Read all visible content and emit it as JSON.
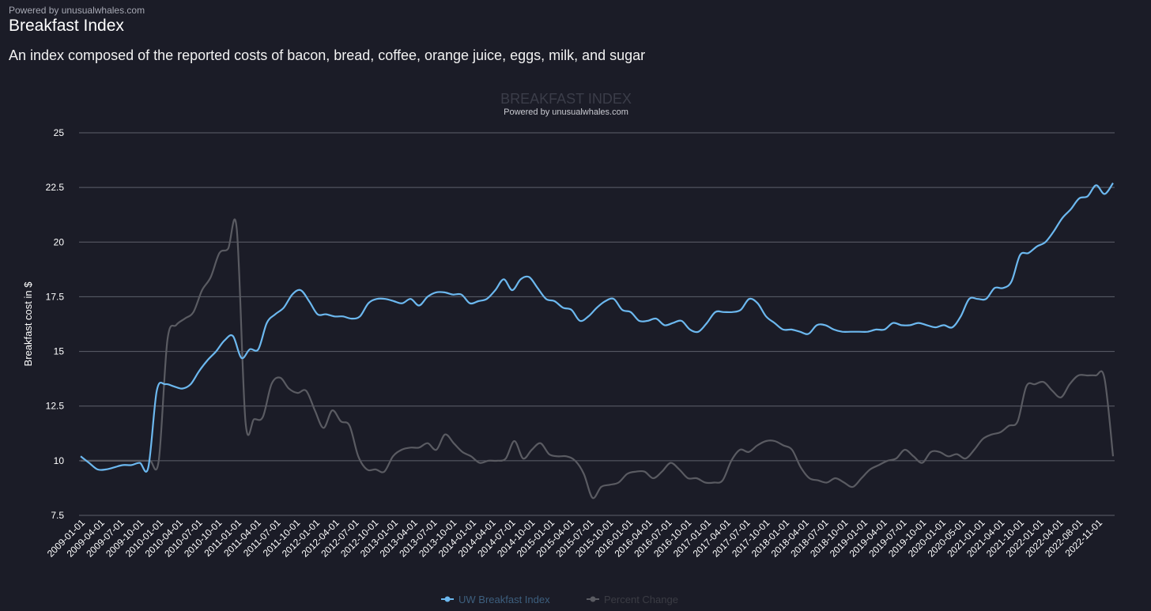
{
  "header": {
    "powered_by": "Powered by unusualwhales.com",
    "title": "Breakfast Index",
    "subtitle": "An index composed of the reported costs of bacon, bread, coffee, orange juice, eggs, milk, and sugar"
  },
  "chart_data": {
    "type": "line",
    "title": "BREAKFAST INDEX",
    "subtitle": "Powered by unusualwhales.com",
    "xlabel": "",
    "ylabel": "Breakfast cost in $",
    "ylim": [
      7.5,
      25
    ],
    "y_ticks": [
      "7.5",
      "10",
      "12.5",
      "15",
      "17.5",
      "20",
      "22.5",
      "25"
    ],
    "grid": true,
    "legend_position": "bottom-center",
    "x_tick_labels": [
      "2009-01-01",
      "2009-04-01",
      "2009-07-01",
      "2009-10-01",
      "2010-01-01",
      "2010-04-01",
      "2010-07-01",
      "2010-10-01",
      "2011-01-01",
      "2011-04-01",
      "2011-07-01",
      "2011-10-01",
      "2012-01-01",
      "2012-04-01",
      "2012-07-01",
      "2012-10-01",
      "2013-01-01",
      "2013-04-01",
      "2013-07-01",
      "2013-10-01",
      "2014-01-01",
      "2014-04-01",
      "2014-07-01",
      "2014-10-01",
      "2015-01-01",
      "2015-04-01",
      "2015-07-01",
      "2015-10-01",
      "2016-01-01",
      "2016-04-01",
      "2016-07-01",
      "2016-10-01",
      "2017-01-01",
      "2017-04-01",
      "2017-07-01",
      "2017-10-01",
      "2018-01-01",
      "2018-04-01",
      "2018-07-01",
      "2018-10-01",
      "2019-01-01",
      "2019-04-01",
      "2019-07-01",
      "2019-10-01",
      "2020-01-01",
      "2020-05-01",
      "2021-01-01",
      "2021-04-01",
      "2021-10-01",
      "2022-01-01",
      "2022-04-01",
      "2022-08-01",
      "2022-11-01"
    ],
    "colors": {
      "index": "#6cb8ef",
      "percent": "#5a5b62"
    },
    "series": [
      {
        "name": "UW Breakfast Index",
        "values": [
          10.2,
          9.9,
          9.6,
          9.6,
          9.7,
          9.8,
          9.8,
          9.9,
          9.7,
          13.2,
          13.5,
          13.4,
          13.3,
          13.5,
          14.1,
          14.6,
          15.0,
          15.5,
          15.7,
          14.7,
          15.1,
          15.1,
          16.3,
          16.7,
          17.0,
          17.6,
          17.8,
          17.3,
          16.7,
          16.7,
          16.6,
          16.6,
          16.5,
          16.6,
          17.2,
          17.4,
          17.4,
          17.3,
          17.2,
          17.4,
          17.1,
          17.5,
          17.7,
          17.7,
          17.6,
          17.6,
          17.2,
          17.3,
          17.4,
          17.8,
          18.3,
          17.8,
          18.3,
          18.4,
          17.9,
          17.4,
          17.3,
          17.0,
          16.9,
          16.4,
          16.6,
          17.0,
          17.3,
          17.4,
          16.9,
          16.8,
          16.4,
          16.4,
          16.5,
          16.2,
          16.3,
          16.4,
          16.0,
          15.9,
          16.3,
          16.8,
          16.8,
          16.8,
          16.9,
          17.4,
          17.2,
          16.6,
          16.3,
          16.0,
          16.0,
          15.9,
          15.8,
          16.2,
          16.2,
          16.0,
          15.9,
          15.9,
          15.9,
          15.9,
          16.0,
          16.0,
          16.3,
          16.2,
          16.2,
          16.3,
          16.2,
          16.1,
          16.2,
          16.1,
          16.6,
          17.4,
          17.4,
          17.4,
          17.9,
          17.9,
          18.2,
          19.4,
          19.5,
          19.8,
          20.0,
          20.5,
          21.1,
          21.5,
          22.0,
          22.1,
          22.6,
          22.2,
          22.7
        ]
      },
      {
        "name": "Percent Change",
        "values": [
          10.0,
          10.0,
          10.0,
          10.0,
          10.0,
          10.0,
          10.0,
          10.0,
          10.0,
          10.0,
          15.5,
          16.2,
          16.5,
          16.8,
          17.8,
          18.4,
          19.5,
          19.7,
          20.6,
          11.8,
          11.9,
          12.0,
          13.5,
          13.8,
          13.3,
          13.1,
          13.2,
          12.3,
          11.5,
          12.3,
          11.8,
          11.6,
          10.2,
          9.6,
          9.6,
          9.5,
          10.2,
          10.5,
          10.6,
          10.6,
          10.8,
          10.5,
          11.2,
          10.8,
          10.4,
          10.2,
          9.9,
          10.0,
          10.0,
          10.1,
          10.9,
          10.1,
          10.5,
          10.8,
          10.3,
          10.2,
          10.2,
          10.0,
          9.4,
          8.3,
          8.8,
          8.9,
          9.0,
          9.4,
          9.5,
          9.5,
          9.2,
          9.5,
          9.9,
          9.6,
          9.2,
          9.2,
          9.0,
          9.0,
          9.1,
          10.0,
          10.5,
          10.4,
          10.7,
          10.9,
          10.9,
          10.7,
          10.5,
          9.7,
          9.2,
          9.1,
          9.0,
          9.2,
          9.0,
          8.8,
          9.2,
          9.6,
          9.8,
          10.0,
          10.1,
          10.5,
          10.2,
          9.9,
          10.4,
          10.4,
          10.2,
          10.3,
          10.1,
          10.5,
          11.0,
          11.2,
          11.3,
          11.6,
          11.8,
          13.4,
          13.5,
          13.6,
          13.2,
          12.9,
          13.5,
          13.9,
          13.9,
          13.9,
          13.8,
          10.2
        ]
      }
    ]
  }
}
